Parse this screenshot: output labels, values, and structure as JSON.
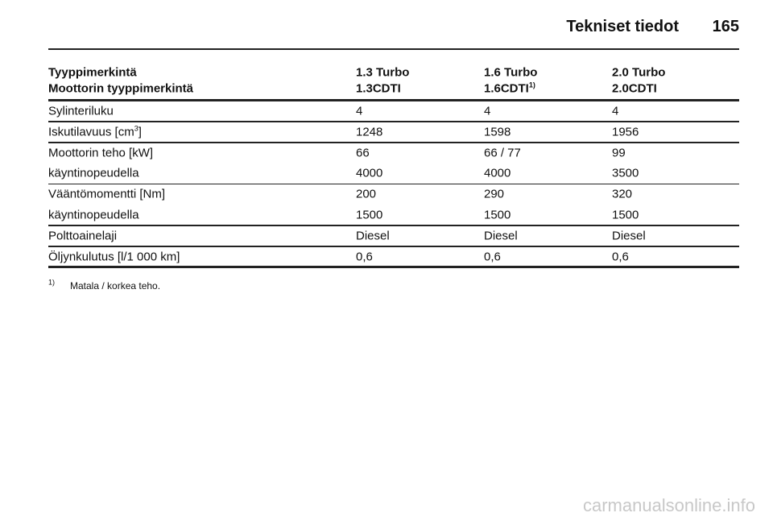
{
  "header": {
    "title": "Tekniset tiedot",
    "page": "165"
  },
  "table": {
    "head": [
      [
        {
          "text": "Tyyppimerkintä"
        },
        {
          "text": "1.3 Turbo"
        },
        {
          "text": "1.6 Turbo"
        },
        {
          "text": "2.0 Turbo"
        }
      ],
      [
        {
          "text": "Moottorin tyyppimerkintä"
        },
        {
          "text": "1.3CDTI"
        },
        {
          "text": "1.6CDTI",
          "sup": "1)"
        },
        {
          "text": "2.0CDTI"
        }
      ]
    ],
    "groups": [
      [
        [
          {
            "text": "Sylinteriluku"
          },
          {
            "text": "4"
          },
          {
            "text": "4"
          },
          {
            "text": "4"
          }
        ]
      ],
      [
        [
          {
            "text": "Iskutilavuus [cm",
            "sup": "3",
            "after": "]"
          },
          {
            "text": "1248"
          },
          {
            "text": "1598"
          },
          {
            "text": "1956"
          }
        ]
      ],
      [
        [
          {
            "text": "Moottorin teho [kW]"
          },
          {
            "text": "66"
          },
          {
            "text": "66 / 77"
          },
          {
            "text": "99"
          }
        ],
        [
          {
            "text": "käyntinopeudella"
          },
          {
            "text": "4000"
          },
          {
            "text": "4000"
          },
          {
            "text": "3500"
          }
        ]
      ],
      [
        [
          {
            "text": "Vääntömomentti [Nm]"
          },
          {
            "text": "200"
          },
          {
            "text": "290"
          },
          {
            "text": "320"
          }
        ],
        [
          {
            "text": "käyntinopeudella"
          },
          {
            "text": "1500"
          },
          {
            "text": "1500"
          },
          {
            "text": "1500"
          }
        ]
      ],
      [
        [
          {
            "text": "Polttoainelaji"
          },
          {
            "text": "Diesel"
          },
          {
            "text": "Diesel"
          },
          {
            "text": "Diesel"
          }
        ]
      ],
      [
        [
          {
            "text": "Öljynkulutus [l/1 000 km]"
          },
          {
            "text": "0,6"
          },
          {
            "text": "0,6"
          },
          {
            "text": "0,6"
          }
        ]
      ]
    ]
  },
  "footnote": {
    "mark": "1)",
    "text": "Matala / korkea teho."
  },
  "watermark": "carmanualsonline.info"
}
